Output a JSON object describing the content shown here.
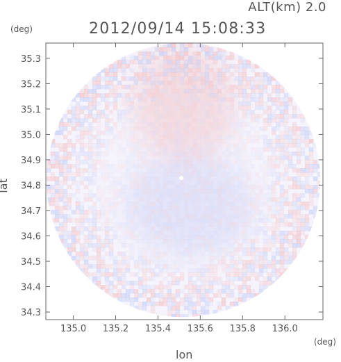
{
  "header": {
    "altitude_label": "ALT(km) 2.0",
    "timestamp": "2012/09/14 15:08:33"
  },
  "colors": {
    "positive": "#f2b5b8",
    "negative": "#b8c4f5",
    "axis": "#666666",
    "text": "#555555"
  },
  "chart_data": {
    "type": "heatmap",
    "title": "",
    "xlabel": "lon",
    "ylabel": "lat",
    "x_unit": "(deg)",
    "y_unit": "(deg)",
    "xlim": [
      134.87,
      136.18
    ],
    "ylim": [
      34.27,
      35.36
    ],
    "x_ticks": [
      135.0,
      135.2,
      135.4,
      135.6,
      135.8,
      136.0
    ],
    "x_tick_labels": [
      "135.0",
      "135.2",
      "135.4",
      "135.6",
      "135.8",
      "136.0"
    ],
    "y_ticks": [
      34.3,
      34.4,
      34.5,
      34.6,
      34.7,
      34.8,
      34.9,
      35.0,
      35.1,
      35.2,
      35.3
    ],
    "y_tick_labels": [
      "34.3",
      "34.4",
      "34.5",
      "34.6",
      "34.7",
      "34.8",
      "34.9",
      "35.0",
      "35.1",
      "35.2",
      "35.3"
    ],
    "domain": {
      "shape": "circle",
      "center_lon": 135.52,
      "center_lat": 34.82,
      "radius_deg": 0.54
    },
    "regions": [
      {
        "name": "northern positive field",
        "sign": "positive",
        "center_lon": 135.52,
        "center_lat": 35.12,
        "extent_lon": 0.24,
        "extent_lat": 0.22,
        "level": 0.35
      },
      {
        "name": "central negative field",
        "sign": "negative",
        "center_lon": 135.55,
        "center_lat": 34.72,
        "extent_lon": 0.3,
        "extent_lat": 0.2,
        "level": 0.3
      },
      {
        "name": "ring of small-scale noise",
        "sign": "mixed",
        "inner_radius_deg": 0.34,
        "outer_radius_deg": 0.54,
        "level": 0.55
      }
    ],
    "grid": false,
    "legend": "none"
  }
}
